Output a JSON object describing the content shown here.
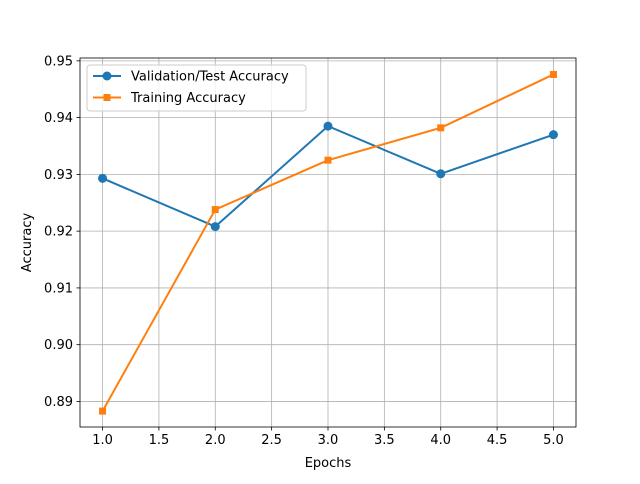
{
  "chart_data": {
    "type": "line",
    "title": "",
    "xlabel": "Epochs",
    "ylabel": "Accuracy",
    "xlim": [
      0.8,
      5.2
    ],
    "ylim": [
      0.8855,
      0.9505
    ],
    "x_ticks": [
      1.0,
      1.5,
      2.0,
      2.5,
      3.0,
      3.5,
      4.0,
      4.5,
      5.0
    ],
    "x_tick_labels": [
      "1.0",
      "1.5",
      "2.0",
      "2.5",
      "3.0",
      "3.5",
      "4.0",
      "4.5",
      "5.0"
    ],
    "y_ticks": [
      0.89,
      0.9,
      0.91,
      0.92,
      0.93,
      0.94,
      0.95
    ],
    "y_tick_labels": [
      "0.89",
      "0.90",
      "0.91",
      "0.92",
      "0.93",
      "0.94",
      "0.95"
    ],
    "grid": true,
    "legend_position": "top-left",
    "x": [
      1,
      2,
      3,
      4,
      5
    ],
    "series": [
      {
        "name": "Validation/Test Accuracy",
        "values": [
          0.9293,
          0.9208,
          0.9385,
          0.9301,
          0.937
        ],
        "color": "#1f77b4",
        "marker": "circle"
      },
      {
        "name": "Training Accuracy",
        "values": [
          0.8883,
          0.9238,
          0.9325,
          0.9382,
          0.9476
        ],
        "color": "#ff7f0e",
        "marker": "square"
      }
    ]
  }
}
